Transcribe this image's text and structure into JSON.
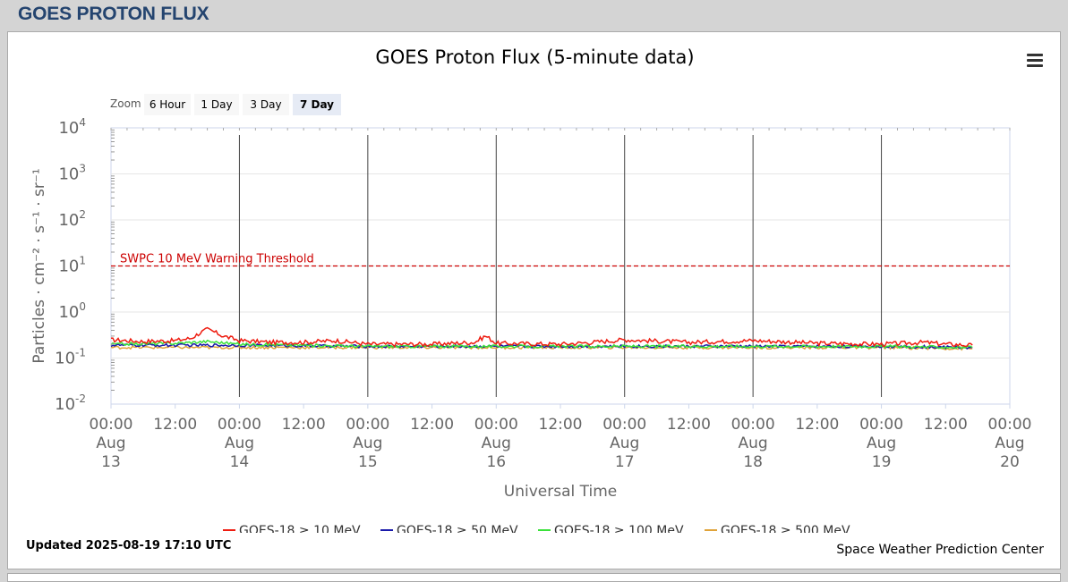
{
  "page": {
    "title": "GOES PROTON FLUX"
  },
  "chart": {
    "title": "GOES Proton Flux (5-minute data)",
    "zoom": {
      "label": "Zoom",
      "options": [
        "6 Hour",
        "1 Day",
        "3 Day",
        "7 Day"
      ],
      "selected": "7 Day"
    },
    "updated": "Updated 2025-08-19 17:10 UTC",
    "credit": "Space Weather Prediction Center",
    "threshold_label": "SWPC 10 MeV Warning Threshold",
    "menu_icon": "hamburger-menu-icon"
  },
  "chart_data": {
    "type": "line",
    "title": "GOES Proton Flux (5-minute data)",
    "xlabel": "Universal Time",
    "ylabel": "Particles · cm⁻² · s⁻¹ · sr⁻¹",
    "y_scale": "log",
    "ylim": [
      0.01,
      10000
    ],
    "xlim": [
      "2025-08-13 00:00",
      "2025-08-20 00:00"
    ],
    "y_ticks": [
      {
        "base": "10",
        "exp": "4"
      },
      {
        "base": "10",
        "exp": "3"
      },
      {
        "base": "10",
        "exp": "2"
      },
      {
        "base": "10",
        "exp": "1"
      },
      {
        "base": "10",
        "exp": "0"
      },
      {
        "base": "10",
        "exp": "-1"
      },
      {
        "base": "10",
        "exp": "-2"
      }
    ],
    "x_ticks": [
      {
        "time": "00:00",
        "month": "Aug",
        "day": "13"
      },
      {
        "time": "12:00"
      },
      {
        "time": "00:00",
        "month": "Aug",
        "day": "14"
      },
      {
        "time": "12:00"
      },
      {
        "time": "00:00",
        "month": "Aug",
        "day": "15"
      },
      {
        "time": "12:00"
      },
      {
        "time": "00:00",
        "month": "Aug",
        "day": "16"
      },
      {
        "time": "12:00"
      },
      {
        "time": "00:00",
        "month": "Aug",
        "day": "17"
      },
      {
        "time": "12:00"
      },
      {
        "time": "00:00",
        "month": "Aug",
        "day": "18"
      },
      {
        "time": "12:00"
      },
      {
        "time": "00:00",
        "month": "Aug",
        "day": "19"
      },
      {
        "time": "12:00"
      },
      {
        "time": "00:00",
        "month": "Aug",
        "day": "20"
      }
    ],
    "threshold": {
      "value": 10,
      "label": "SWPC 10 MeV Warning Threshold",
      "color": "#cc0000"
    },
    "grid": true,
    "legend_position": "bottom",
    "series": [
      {
        "name": "GOES-18 ≥ 10 MeV",
        "color": "#ee1c10",
        "x": [
          "2025-08-13 00:00",
          "2025-08-13 06:00",
          "2025-08-13 12:00",
          "2025-08-13 15:00",
          "2025-08-13 18:00",
          "2025-08-13 21:00",
          "2025-08-14 00:00",
          "2025-08-14 06:00",
          "2025-08-14 12:00",
          "2025-08-14 18:00",
          "2025-08-15 00:00",
          "2025-08-15 12:00",
          "2025-08-15 20:00",
          "2025-08-15 22:00",
          "2025-08-16 00:00",
          "2025-08-16 12:00",
          "2025-08-16 18:00",
          "2025-08-17 00:00",
          "2025-08-17 12:00",
          "2025-08-18 00:00",
          "2025-08-18 12:00",
          "2025-08-19 00:00",
          "2025-08-19 08:00",
          "2025-08-19 12:00",
          "2025-08-19 17:00"
        ],
        "y": [
          0.25,
          0.23,
          0.24,
          0.27,
          0.42,
          0.3,
          0.24,
          0.22,
          0.22,
          0.24,
          0.2,
          0.2,
          0.22,
          0.3,
          0.21,
          0.2,
          0.22,
          0.25,
          0.22,
          0.24,
          0.21,
          0.2,
          0.22,
          0.2,
          0.19
        ]
      },
      {
        "name": "GOES-18 ≥ 50 MeV",
        "color": "#1a1aaa",
        "x": [
          "2025-08-13 00:00",
          "2025-08-14 00:00",
          "2025-08-15 00:00",
          "2025-08-16 00:00",
          "2025-08-17 00:00",
          "2025-08-18 00:00",
          "2025-08-19 00:00",
          "2025-08-19 17:00"
        ],
        "y": [
          0.19,
          0.19,
          0.18,
          0.18,
          0.18,
          0.18,
          0.18,
          0.17
        ]
      },
      {
        "name": "GOES-18 ≥ 100 MeV",
        "color": "#3ae13a",
        "x": [
          "2025-08-13 00:00",
          "2025-08-13 12:00",
          "2025-08-13 18:00",
          "2025-08-14 00:00",
          "2025-08-14 12:00",
          "2025-08-15 00:00",
          "2025-08-16 00:00",
          "2025-08-17 00:00",
          "2025-08-18 00:00",
          "2025-08-19 00:00",
          "2025-08-19 17:00"
        ],
        "y": [
          0.2,
          0.21,
          0.23,
          0.2,
          0.19,
          0.18,
          0.18,
          0.18,
          0.18,
          0.18,
          0.17
        ]
      },
      {
        "name": "GOES-18 ≥ 500 MeV",
        "color": "#e0a33a",
        "x": [
          "2025-08-13 00:00",
          "2025-08-14 00:00",
          "2025-08-15 00:00",
          "2025-08-16 00:00",
          "2025-08-17 00:00",
          "2025-08-18 00:00",
          "2025-08-19 00:00",
          "2025-08-19 17:00"
        ],
        "y": [
          0.17,
          0.17,
          0.17,
          0.17,
          0.17,
          0.17,
          0.17,
          0.16
        ]
      }
    ]
  }
}
